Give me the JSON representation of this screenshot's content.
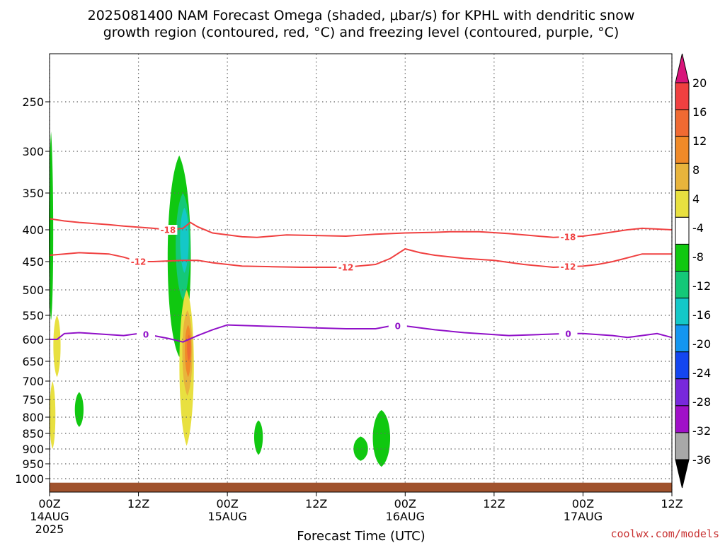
{
  "title_line1": "2025081400 NAM Forecast Omega (shaded, μbar/s) for KPHL with dendritic snow",
  "title_line2": "growth region (contoured, red, °C) and freezing level (contoured, purple, °C)",
  "xlabel": "Forecast Time (UTC)",
  "credit": "coolwx.com/models",
  "chart_data": {
    "type": "time-height cross section",
    "title": "2025081400 NAM Forecast Omega (shaded, μbar/s) for KPHL with dendritic snow growth region (contoured, red, °C) and freezing level (contoured, purple, °C)",
    "xlabel": "Forecast Time (UTC)",
    "ylabel": "",
    "x_range_hours": [
      0,
      84
    ],
    "y_axis": "pressure (hPa), log-like, inverted",
    "y_range": [
      1050,
      200
    ],
    "x_ticks": [
      {
        "hour": 0,
        "label": "00Z",
        "date": "14AUG",
        "year": "2025"
      },
      {
        "hour": 12,
        "label": "12Z",
        "date": "",
        "year": ""
      },
      {
        "hour": 24,
        "label": "00Z",
        "date": "15AUG",
        "year": ""
      },
      {
        "hour": 36,
        "label": "12Z",
        "date": "",
        "year": ""
      },
      {
        "hour": 48,
        "label": "00Z",
        "date": "16AUG",
        "year": ""
      },
      {
        "hour": 60,
        "label": "12Z",
        "date": "",
        "year": ""
      },
      {
        "hour": 72,
        "label": "00Z",
        "date": "17AUG",
        "year": ""
      },
      {
        "hour": 84,
        "label": "12Z",
        "date": "",
        "year": ""
      }
    ],
    "y_ticks": [
      250,
      300,
      350,
      400,
      450,
      500,
      550,
      600,
      650,
      700,
      750,
      800,
      850,
      900,
      950,
      1000
    ],
    "grid": true,
    "colorbar": {
      "labels": [
        "20",
        "16",
        "12",
        "8",
        "4",
        "-4",
        "-8",
        "-12",
        "-16",
        "-20",
        "-24",
        "-28",
        "-32",
        "-36"
      ],
      "colors": [
        "#d8157a",
        "#f04040",
        "#f06a32",
        "#f08a28",
        "#e8b43c",
        "#e8e040",
        "#ffffff",
        "#10c810",
        "#14c878",
        "#14c8c8",
        "#1496f0",
        "#1446f0",
        "#7828dc",
        "#a010c8",
        "#a8a8a8",
        "#000000"
      ]
    },
    "series": [
      {
        "name": "-18",
        "kind": "contour",
        "color": "#f04040",
        "label_hours": [
          16,
          70
        ],
        "points": [
          [
            0,
            385
          ],
          [
            2,
            388
          ],
          [
            4,
            390
          ],
          [
            8,
            393
          ],
          [
            10,
            395
          ],
          [
            14,
            398
          ],
          [
            16,
            400
          ],
          [
            18,
            398
          ],
          [
            19,
            390
          ],
          [
            20,
            396
          ],
          [
            22,
            405
          ],
          [
            26,
            411
          ],
          [
            28,
            412
          ],
          [
            32,
            408
          ],
          [
            40,
            410
          ],
          [
            44,
            407
          ],
          [
            48,
            405
          ],
          [
            52,
            404
          ],
          [
            54,
            403
          ],
          [
            58,
            403
          ],
          [
            62,
            406
          ],
          [
            66,
            410
          ],
          [
            68,
            412
          ],
          [
            72,
            410
          ],
          [
            74,
            407
          ],
          [
            78,
            400
          ],
          [
            80,
            398
          ],
          [
            84,
            400
          ]
        ]
      },
      {
        "name": "-12",
        "kind": "contour",
        "color": "#f04040",
        "label_hours": [
          12,
          40,
          70
        ],
        "points": [
          [
            0,
            440
          ],
          [
            2,
            438
          ],
          [
            4,
            436
          ],
          [
            8,
            438
          ],
          [
            10,
            443
          ],
          [
            12,
            450
          ],
          [
            14,
            450
          ],
          [
            18,
            448
          ],
          [
            20,
            448
          ],
          [
            22,
            452
          ],
          [
            26,
            458
          ],
          [
            30,
            459
          ],
          [
            34,
            460
          ],
          [
            40,
            460
          ],
          [
            44,
            455
          ],
          [
            46,
            445
          ],
          [
            48,
            430
          ],
          [
            50,
            436
          ],
          [
            52,
            440
          ],
          [
            56,
            445
          ],
          [
            60,
            448
          ],
          [
            64,
            455
          ],
          [
            68,
            460
          ],
          [
            72,
            458
          ],
          [
            74,
            455
          ],
          [
            76,
            450
          ],
          [
            78,
            444
          ],
          [
            80,
            438
          ],
          [
            84,
            438
          ]
        ]
      },
      {
        "name": "0",
        "kind": "contour",
        "color": "#9010c8",
        "label_hours": [
          13,
          47,
          70
        ],
        "points": [
          [
            0,
            600
          ],
          [
            1,
            600
          ],
          [
            2,
            588
          ],
          [
            4,
            586
          ],
          [
            8,
            590
          ],
          [
            10,
            592
          ],
          [
            12,
            588
          ],
          [
            14,
            592
          ],
          [
            16,
            598
          ],
          [
            18,
            606
          ],
          [
            20,
            592
          ],
          [
            22,
            580
          ],
          [
            24,
            570
          ],
          [
            28,
            572
          ],
          [
            32,
            574
          ],
          [
            36,
            576
          ],
          [
            40,
            578
          ],
          [
            44,
            578
          ],
          [
            46,
            572
          ],
          [
            48,
            572
          ],
          [
            52,
            580
          ],
          [
            56,
            586
          ],
          [
            60,
            590
          ],
          [
            62,
            592
          ],
          [
            66,
            590
          ],
          [
            70,
            588
          ],
          [
            72,
            588
          ],
          [
            76,
            592
          ],
          [
            78,
            596
          ],
          [
            82,
            588
          ],
          [
            84,
            596
          ]
        ]
      }
    ],
    "omega_blobs": [
      {
        "value": -8,
        "color": "#10c810",
        "center_hour": 0.2,
        "center_hpa": 450,
        "half_width_h": 0.3,
        "top_hpa": 280,
        "bottom_hpa": 560
      },
      {
        "value": 4,
        "color": "#e8e040",
        "center_hour": 1.0,
        "center_hpa": 610,
        "half_width_h": 0.5,
        "top_hpa": 550,
        "bottom_hpa": 690
      },
      {
        "value": 4,
        "color": "#e8e040",
        "center_hour": 0.4,
        "center_hpa": 800,
        "half_width_h": 0.4,
        "top_hpa": 700,
        "bottom_hpa": 900
      },
      {
        "value": -8,
        "color": "#10c810",
        "center_hour": 4.0,
        "center_hpa": 780,
        "half_width_h": 0.6,
        "top_hpa": 730,
        "bottom_hpa": 830
      },
      {
        "value": -8,
        "color": "#10c810",
        "center_hour": 17.5,
        "center_hpa": 450,
        "half_width_h": 1.6,
        "top_hpa": 305,
        "bottom_hpa": 640
      },
      {
        "value": -12,
        "color": "#14c878",
        "center_hour": 18.0,
        "center_hpa": 420,
        "half_width_h": 1.0,
        "top_hpa": 350,
        "bottom_hpa": 520
      },
      {
        "value": -16,
        "color": "#14c8c8",
        "center_hour": 18.2,
        "center_hpa": 410,
        "half_width_h": 0.6,
        "top_hpa": 370,
        "bottom_hpa": 470
      },
      {
        "value": 4,
        "color": "#e8e040",
        "center_hour": 18.5,
        "center_hpa": 640,
        "half_width_h": 1.0,
        "top_hpa": 500,
        "bottom_hpa": 890
      },
      {
        "value": 8,
        "color": "#e8b43c",
        "center_hour": 18.6,
        "center_hpa": 620,
        "half_width_h": 0.7,
        "top_hpa": 540,
        "bottom_hpa": 740
      },
      {
        "value": 12,
        "color": "#f08a28",
        "center_hour": 18.7,
        "center_hpa": 615,
        "half_width_h": 0.45,
        "top_hpa": 570,
        "bottom_hpa": 690
      },
      {
        "value": 16,
        "color": "#f06a32",
        "center_hour": 18.8,
        "center_hpa": 610,
        "half_width_h": 0.25,
        "top_hpa": 590,
        "bottom_hpa": 650
      },
      {
        "value": -8,
        "color": "#10c810",
        "center_hour": 28.2,
        "center_hpa": 855,
        "half_width_h": 0.6,
        "top_hpa": 810,
        "bottom_hpa": 920
      },
      {
        "value": -8,
        "color": "#10c810",
        "center_hour": 42.0,
        "center_hpa": 900,
        "half_width_h": 1.0,
        "top_hpa": 860,
        "bottom_hpa": 940
      },
      {
        "value": -8,
        "color": "#10c810",
        "center_hour": 44.8,
        "center_hpa": 860,
        "half_width_h": 1.2,
        "top_hpa": 780,
        "bottom_hpa": 960
      }
    ],
    "terrain": {
      "color": "#a0522d",
      "top_hpa": 1015
    }
  }
}
